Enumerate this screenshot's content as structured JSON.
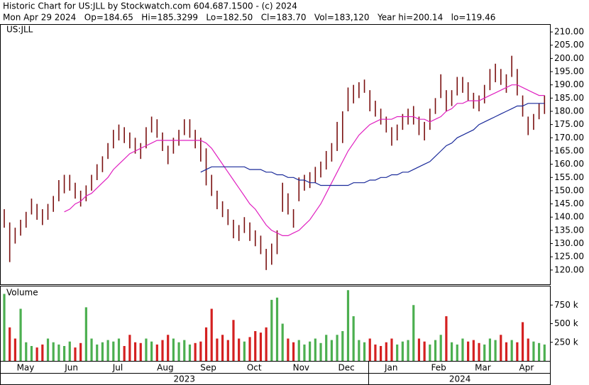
{
  "chart_data": {
    "type": "ohlc",
    "title": "Historic Chart for US:JLL by Stockwatch.com 604.687.1500 - (c) 2024",
    "subtitle": "Mon Apr 29 2024   Op=184.65   Hi=185.3299   Lo=182.50   Cl=183.70   Vol=183,120   Year hi=200.14   lo=119.46",
    "symbol": "US:JLL",
    "bar_color": "#7a1010",
    "highs": [
      143,
      138,
      136,
      139,
      142,
      147,
      145,
      143,
      145,
      148,
      154,
      156,
      156,
      153,
      150,
      152,
      156,
      160,
      163,
      168,
      173,
      175,
      174,
      172,
      170,
      168,
      174,
      178,
      177,
      172,
      167,
      170,
      173,
      177,
      177,
      173,
      170,
      166,
      156,
      150,
      146,
      143,
      139,
      137,
      140,
      138,
      135,
      133,
      128,
      130,
      135,
      153,
      149,
      143,
      155,
      156,
      157,
      159,
      161,
      165,
      168,
      176,
      180,
      189,
      190,
      191,
      192,
      188,
      184,
      181,
      178,
      174,
      175,
      179,
      181,
      182,
      178,
      176,
      181,
      185,
      194,
      188,
      188,
      193,
      193,
      191,
      187,
      186,
      190,
      196,
      198,
      196,
      194,
      201,
      196,
      186,
      178,
      179,
      183,
      186
    ],
    "lows": [
      136,
      123,
      130,
      133,
      136,
      141,
      139,
      137,
      139,
      142,
      146,
      149,
      150,
      147,
      144,
      146,
      150,
      154,
      157,
      162,
      166,
      169,
      168,
      166,
      164,
      162,
      166,
      172,
      170,
      165,
      160,
      164,
      167,
      171,
      170,
      166,
      161,
      152,
      148,
      143,
      140,
      137,
      132,
      131,
      134,
      131,
      129,
      126,
      120,
      122,
      126,
      142,
      141,
      136,
      146,
      150,
      151,
      153,
      155,
      158,
      161,
      165,
      168,
      180,
      183,
      185,
      187,
      180,
      178,
      175,
      172,
      167,
      169,
      173,
      175,
      175,
      171,
      169,
      173,
      179,
      185,
      180,
      182,
      186,
      187,
      184,
      181,
      180,
      183,
      188,
      191,
      190,
      187,
      193,
      186,
      178,
      171,
      173,
      177,
      179
    ],
    "averages": [
      {
        "color": "#e020c0",
        "values": [
          null,
          null,
          null,
          null,
          null,
          null,
          null,
          null,
          null,
          null,
          null,
          142,
          143,
          145,
          146,
          148,
          149,
          151,
          153,
          155,
          158,
          160,
          162,
          164,
          165,
          166,
          167,
          168,
          169,
          169,
          169,
          169,
          169,
          169,
          169,
          169,
          169,
          168,
          166,
          163,
          160,
          157,
          154,
          151,
          148,
          145,
          143,
          140,
          137,
          135,
          134,
          133,
          133,
          134,
          135,
          137,
          139,
          142,
          145,
          149,
          153,
          157,
          161,
          165,
          168,
          171,
          173,
          175,
          176,
          177,
          177,
          177,
          178,
          178,
          178,
          178,
          177,
          177,
          176,
          177,
          178,
          180,
          181,
          183,
          183,
          184,
          184,
          184,
          185,
          186,
          187,
          188,
          189,
          190,
          190,
          189,
          188,
          187,
          186,
          186
        ]
      },
      {
        "color": "#1a2a9a",
        "values": [
          null,
          null,
          null,
          null,
          null,
          null,
          null,
          null,
          null,
          null,
          null,
          null,
          null,
          null,
          null,
          null,
          null,
          null,
          null,
          null,
          null,
          null,
          null,
          null,
          null,
          null,
          null,
          null,
          null,
          null,
          null,
          null,
          null,
          null,
          null,
          null,
          157,
          158,
          159,
          159,
          159,
          159,
          159,
          159,
          159,
          158,
          158,
          158,
          157,
          157,
          156,
          156,
          155,
          155,
          154,
          154,
          153,
          153,
          152,
          152,
          152,
          152,
          152,
          152,
          153,
          153,
          153,
          154,
          154,
          155,
          155,
          156,
          156,
          157,
          157,
          158,
          159,
          160,
          161,
          163,
          165,
          167,
          168,
          170,
          171,
          172,
          173,
          175,
          176,
          177,
          178,
          179,
          180,
          181,
          182,
          182,
          183,
          183,
          183,
          183
        ]
      }
    ],
    "xlim": [
      -0.65,
      100
    ],
    "ylim": [
      114.6,
      212.7
    ],
    "yticks": [
      120,
      125,
      130,
      135,
      140,
      145,
      150,
      155,
      160,
      165,
      170,
      175,
      180,
      185,
      190,
      195,
      200,
      205,
      210
    ],
    "ytick_labels": [
      "120.00",
      "125.00",
      "130.00",
      "135.00",
      "140.00",
      "145.00",
      "150.00",
      "155.00",
      "160.00",
      "165.00",
      "170.00",
      "175.00",
      "180.00",
      "185.00",
      "190.00",
      "195.00",
      "200.00",
      "205.00",
      "210.00"
    ],
    "xticks": [
      {
        "value": 3.9,
        "label": "May"
      },
      {
        "value": 12.3,
        "label": "Jun"
      },
      {
        "value": 20.8,
        "label": "Jul"
      },
      {
        "value": 29.5,
        "label": "Aug"
      },
      {
        "value": 37.4,
        "label": "Sep"
      },
      {
        "value": 45.8,
        "label": "Oct"
      },
      {
        "value": 54.4,
        "label": "Nov"
      },
      {
        "value": 62.7,
        "label": "Dec"
      },
      {
        "value": 70.9,
        "label": "Jan"
      },
      {
        "value": 79.6,
        "label": "Feb"
      },
      {
        "value": 87.7,
        "label": "Mar"
      },
      {
        "value": 95.7,
        "label": "Apr"
      }
    ],
    "years": [
      {
        "value": 33,
        "label": "2023"
      },
      {
        "value": 83.5,
        "label": "2024"
      }
    ],
    "volume": {
      "label": "Volume",
      "up_color": "#4caf50",
      "down_color": "#d42020",
      "values": [
        900,
        450,
        300,
        700,
        250,
        200,
        180,
        220,
        300,
        250,
        220,
        200,
        260,
        180,
        240,
        720,
        300,
        220,
        250,
        280,
        260,
        300,
        200,
        350,
        250,
        240,
        300,
        260,
        220,
        280,
        350,
        300,
        250,
        280,
        220,
        240,
        260,
        450,
        700,
        300,
        350,
        280,
        550,
        300,
        260,
        320,
        400,
        380,
        450,
        820,
        850,
        500,
        300,
        250,
        280,
        220,
        260,
        300,
        240,
        350,
        280,
        350,
        400,
        950,
        600,
        280,
        250,
        300,
        220,
        200,
        250,
        300,
        220,
        260,
        280,
        750,
        300,
        260,
        220,
        280,
        350,
        600,
        250,
        220,
        300,
        260,
        280,
        240,
        220,
        300,
        280,
        350,
        250,
        280,
        250,
        520,
        300,
        260,
        240,
        220
      ],
      "ylim": [
        0,
        1000
      ],
      "yticks": [
        {
          "value": 250,
          "label": "250 k"
        },
        {
          "value": 500,
          "label": "500 k"
        },
        {
          "value": 750,
          "label": "750 k"
        }
      ]
    }
  }
}
